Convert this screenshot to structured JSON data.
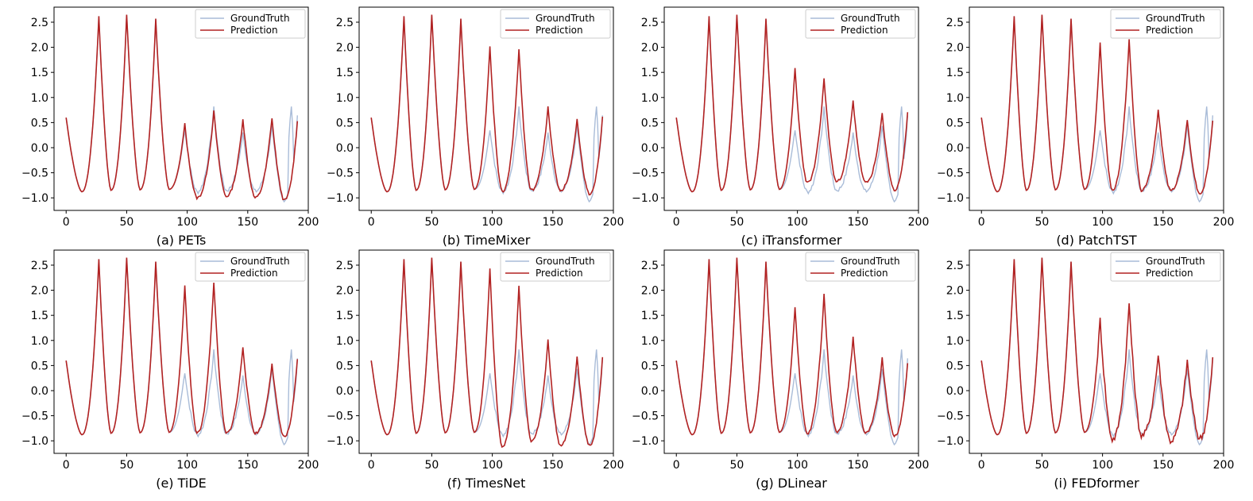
{
  "figure_title": "Forecast comparison: GroundTruth vs Prediction",
  "colors": {
    "ground_truth": "#a9bcd8",
    "prediction": "#b22222",
    "axis": "#000000"
  },
  "chart_data": [
    {
      "type": "line",
      "title": "(a) PETs",
      "xlim": [
        -10,
        200
      ],
      "ylim": [
        -1.25,
        2.8
      ],
      "xticks": [
        "0",
        "50",
        "100",
        "150",
        "200"
      ],
      "yticks": [
        "-1.0",
        "-0.5",
        "0.0",
        "0.5",
        "1.0",
        "1.5",
        "2.0",
        "2.5"
      ],
      "legend": [
        "GroundTruth",
        "Prediction"
      ],
      "legend_loc": "top-right",
      "peaks": [
        {
          "x": 27,
          "y": 2.62
        },
        {
          "x": 50,
          "y": 2.65
        },
        {
          "x": 74,
          "y": 2.57
        },
        {
          "x": 98,
          "y": 0.47
        },
        {
          "x": 122,
          "y": 0.72
        },
        {
          "x": 146,
          "y": 0.58
        },
        {
          "x": 170,
          "y": 0.6
        }
      ],
      "troughs": [
        {
          "x": 13,
          "y": -0.88
        },
        {
          "x": 37,
          "y": -0.85
        },
        {
          "x": 61,
          "y": -0.84
        },
        {
          "x": 85,
          "y": -0.83
        },
        {
          "x": 108,
          "y": -1.0
        },
        {
          "x": 132,
          "y": -0.97
        },
        {
          "x": 156,
          "y": -1.0
        },
        {
          "x": 180,
          "y": -1.05
        }
      ]
    },
    {
      "type": "line",
      "title": "(b) TimeMixer",
      "xlim": [
        -10,
        200
      ],
      "ylim": [
        -1.25,
        2.8
      ],
      "xticks": [
        "0",
        "50",
        "100",
        "150",
        "200"
      ],
      "yticks": [
        "-1.0",
        "-0.5",
        "0.0",
        "0.5",
        "1.0",
        "1.5",
        "2.0",
        "2.5"
      ],
      "legend": [
        "GroundTruth",
        "Prediction"
      ],
      "legend_loc": "top-right",
      "peaks": [
        {
          "x": 27,
          "y": 2.62
        },
        {
          "x": 50,
          "y": 2.65
        },
        {
          "x": 74,
          "y": 2.57
        },
        {
          "x": 98,
          "y": 2.0
        },
        {
          "x": 122,
          "y": 1.95
        },
        {
          "x": 146,
          "y": 0.8
        },
        {
          "x": 170,
          "y": 0.55
        }
      ],
      "troughs": [
        {
          "x": 13,
          "y": -0.88
        },
        {
          "x": 37,
          "y": -0.85
        },
        {
          "x": 61,
          "y": -0.84
        },
        {
          "x": 85,
          "y": -0.83
        },
        {
          "x": 108,
          "y": -0.88
        },
        {
          "x": 132,
          "y": -0.85
        },
        {
          "x": 156,
          "y": -0.85
        },
        {
          "x": 180,
          "y": -0.92
        }
      ]
    },
    {
      "type": "line",
      "title": "(c) iTransformer",
      "xlim": [
        -10,
        200
      ],
      "ylim": [
        -1.25,
        2.8
      ],
      "xticks": [
        "0",
        "50",
        "100",
        "150",
        "200"
      ],
      "yticks": [
        "-1.0",
        "-0.5",
        "0.0",
        "0.5",
        "1.0",
        "1.5",
        "2.0",
        "2.5"
      ],
      "legend": [
        "GroundTruth",
        "Prediction"
      ],
      "legend_loc": "top-right",
      "peaks": [
        {
          "x": 27,
          "y": 2.62
        },
        {
          "x": 50,
          "y": 2.65
        },
        {
          "x": 74,
          "y": 2.57
        },
        {
          "x": 98,
          "y": 1.57
        },
        {
          "x": 122,
          "y": 1.38
        },
        {
          "x": 146,
          "y": 0.93
        },
        {
          "x": 170,
          "y": 0.68
        }
      ],
      "troughs": [
        {
          "x": 13,
          "y": -0.88
        },
        {
          "x": 37,
          "y": -0.85
        },
        {
          "x": 61,
          "y": -0.84
        },
        {
          "x": 85,
          "y": -0.83
        },
        {
          "x": 108,
          "y": -0.7
        },
        {
          "x": 132,
          "y": -0.68
        },
        {
          "x": 156,
          "y": -0.7
        },
        {
          "x": 180,
          "y": -0.85
        }
      ]
    },
    {
      "type": "line",
      "title": "(d) PatchTST",
      "xlim": [
        -10,
        200
      ],
      "ylim": [
        -1.25,
        2.8
      ],
      "xticks": [
        "0",
        "50",
        "100",
        "150",
        "200"
      ],
      "yticks": [
        "-1.0",
        "-0.5",
        "0.0",
        "0.5",
        "1.0",
        "1.5",
        "2.0",
        "2.5"
      ],
      "legend": [
        "GroundTruth",
        "Prediction"
      ],
      "legend_loc": "top-right",
      "peaks": [
        {
          "x": 27,
          "y": 2.62
        },
        {
          "x": 50,
          "y": 2.65
        },
        {
          "x": 74,
          "y": 2.57
        },
        {
          "x": 98,
          "y": 2.08
        },
        {
          "x": 122,
          "y": 2.17
        },
        {
          "x": 146,
          "y": 0.76
        },
        {
          "x": 170,
          "y": 0.55
        }
      ],
      "troughs": [
        {
          "x": 13,
          "y": -0.88
        },
        {
          "x": 37,
          "y": -0.85
        },
        {
          "x": 61,
          "y": -0.84
        },
        {
          "x": 85,
          "y": -0.83
        },
        {
          "x": 108,
          "y": -0.85
        },
        {
          "x": 132,
          "y": -0.85
        },
        {
          "x": 156,
          "y": -0.85
        },
        {
          "x": 180,
          "y": -0.92
        }
      ]
    },
    {
      "type": "line",
      "title": "(e) TiDE",
      "xlim": [
        -10,
        200
      ],
      "ylim": [
        -1.25,
        2.8
      ],
      "xticks": [
        "0",
        "50",
        "100",
        "150",
        "200"
      ],
      "yticks": [
        "-1.0",
        "-0.5",
        "0.0",
        "0.5",
        "1.0",
        "1.5",
        "2.0",
        "2.5"
      ],
      "legend": [
        "GroundTruth",
        "Prediction"
      ],
      "legend_loc": "top-right",
      "peaks": [
        {
          "x": 27,
          "y": 2.62
        },
        {
          "x": 50,
          "y": 2.65
        },
        {
          "x": 74,
          "y": 2.57
        },
        {
          "x": 98,
          "y": 2.08
        },
        {
          "x": 122,
          "y": 2.17
        },
        {
          "x": 146,
          "y": 0.88
        },
        {
          "x": 170,
          "y": 0.55
        }
      ],
      "troughs": [
        {
          "x": 13,
          "y": -0.88
        },
        {
          "x": 37,
          "y": -0.85
        },
        {
          "x": 61,
          "y": -0.84
        },
        {
          "x": 85,
          "y": -0.83
        },
        {
          "x": 108,
          "y": -0.85
        },
        {
          "x": 132,
          "y": -0.85
        },
        {
          "x": 156,
          "y": -0.85
        },
        {
          "x": 180,
          "y": -0.92
        }
      ]
    },
    {
      "type": "line",
      "title": "(f) TimesNet",
      "xlim": [
        -10,
        200
      ],
      "ylim": [
        -1.25,
        2.8
      ],
      "xticks": [
        "0",
        "50",
        "100",
        "150",
        "200"
      ],
      "yticks": [
        "-1.0",
        "-0.5",
        "0.0",
        "0.5",
        "1.0",
        "1.5",
        "2.0",
        "2.5"
      ],
      "legend": [
        "GroundTruth",
        "Prediction"
      ],
      "legend_loc": "top-right",
      "peaks": [
        {
          "x": 27,
          "y": 2.62
        },
        {
          "x": 50,
          "y": 2.65
        },
        {
          "x": 74,
          "y": 2.57
        },
        {
          "x": 98,
          "y": 2.42
        },
        {
          "x": 122,
          "y": 2.07
        },
        {
          "x": 146,
          "y": 1.0
        },
        {
          "x": 170,
          "y": 0.7
        }
      ],
      "troughs": [
        {
          "x": 13,
          "y": -0.88
        },
        {
          "x": 37,
          "y": -0.85
        },
        {
          "x": 61,
          "y": -0.84
        },
        {
          "x": 85,
          "y": -0.83
        },
        {
          "x": 108,
          "y": -1.12
        },
        {
          "x": 132,
          "y": -1.0
        },
        {
          "x": 156,
          "y": -1.1
        },
        {
          "x": 180,
          "y": -1.1
        }
      ]
    },
    {
      "type": "line",
      "title": "(g) DLinear",
      "xlim": [
        -10,
        200
      ],
      "ylim": [
        -1.25,
        2.8
      ],
      "xticks": [
        "0",
        "50",
        "100",
        "150",
        "200"
      ],
      "yticks": [
        "-1.0",
        "-0.5",
        "0.0",
        "0.5",
        "1.0",
        "1.5",
        "2.0",
        "2.5"
      ],
      "legend": [
        "GroundTruth",
        "Prediction"
      ],
      "legend_loc": "top-right",
      "peaks": [
        {
          "x": 27,
          "y": 2.62
        },
        {
          "x": 50,
          "y": 2.65
        },
        {
          "x": 74,
          "y": 2.57
        },
        {
          "x": 98,
          "y": 1.65
        },
        {
          "x": 122,
          "y": 1.92
        },
        {
          "x": 146,
          "y": 1.07
        },
        {
          "x": 170,
          "y": 0.65
        }
      ],
      "troughs": [
        {
          "x": 13,
          "y": -0.88
        },
        {
          "x": 37,
          "y": -0.85
        },
        {
          "x": 61,
          "y": -0.84
        },
        {
          "x": 85,
          "y": -0.83
        },
        {
          "x": 108,
          "y": -0.85
        },
        {
          "x": 132,
          "y": -0.82
        },
        {
          "x": 156,
          "y": -0.85
        },
        {
          "x": 180,
          "y": -0.9
        }
      ]
    },
    {
      "type": "line",
      "title": "(i) FEDformer",
      "xlim": [
        -10,
        200
      ],
      "ylim": [
        -1.25,
        2.8
      ],
      "xticks": [
        "0",
        "50",
        "100",
        "150",
        "200"
      ],
      "yticks": [
        "-1.0",
        "-0.5",
        "0.0",
        "0.5",
        "1.0",
        "1.5",
        "2.0",
        "2.5"
      ],
      "legend": [
        "GroundTruth",
        "Prediction"
      ],
      "legend_loc": "top-right",
      "peaks": [
        {
          "x": 27,
          "y": 2.62
        },
        {
          "x": 50,
          "y": 2.65
        },
        {
          "x": 74,
          "y": 2.57
        },
        {
          "x": 98,
          "y": 1.42
        },
        {
          "x": 122,
          "y": 1.74
        },
        {
          "x": 146,
          "y": 0.72
        },
        {
          "x": 170,
          "y": 0.6
        }
      ],
      "troughs": [
        {
          "x": 13,
          "y": -0.88
        },
        {
          "x": 37,
          "y": -0.85
        },
        {
          "x": 61,
          "y": -0.84
        },
        {
          "x": 85,
          "y": -0.83
        },
        {
          "x": 108,
          "y": -0.97
        },
        {
          "x": 132,
          "y": -0.9
        },
        {
          "x": 156,
          "y": -1.0
        },
        {
          "x": 180,
          "y": -0.95
        }
      ]
    }
  ],
  "ground_truth_series": {
    "peaks": [
      {
        "x": 27,
        "y": 2.62
      },
      {
        "x": 50,
        "y": 2.65
      },
      {
        "x": 74,
        "y": 2.57
      },
      {
        "x": 98,
        "y": 0.38
      },
      {
        "x": 122,
        "y": 0.78
      },
      {
        "x": 146,
        "y": 0.28
      },
      {
        "x": 170,
        "y": 0.4
      }
    ],
    "troughs": [
      {
        "x": 13,
        "y": -0.88
      },
      {
        "x": 37,
        "y": -0.85
      },
      {
        "x": 61,
        "y": -0.84
      },
      {
        "x": 85,
        "y": -0.83
      },
      {
        "x": 108,
        "y": -0.88
      },
      {
        "x": 132,
        "y": -0.85
      },
      {
        "x": 156,
        "y": -0.87
      },
      {
        "x": 180,
        "y": -1.05
      }
    ],
    "end": {
      "x": 191,
      "y": 0.6
    },
    "spike": {
      "x": 186,
      "y": 0.82
    }
  }
}
